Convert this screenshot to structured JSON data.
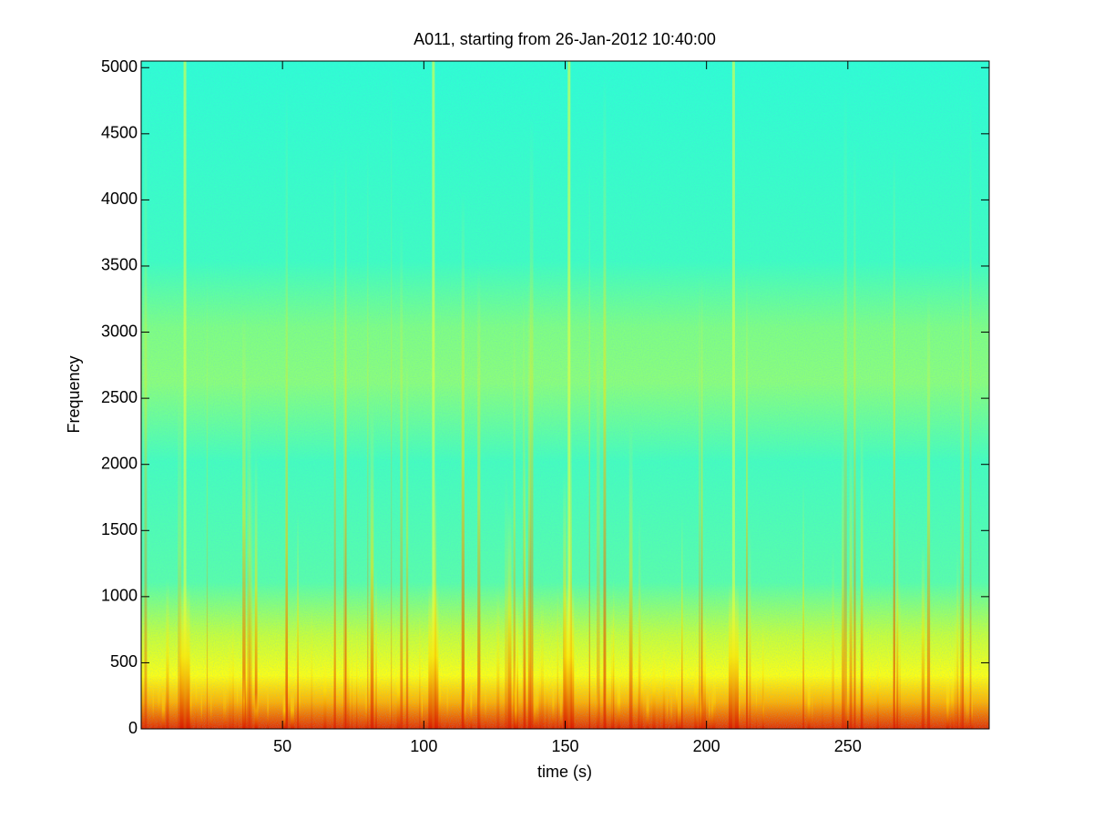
{
  "chart_data": {
    "type": "spectrogram",
    "title": "A011, starting from 26-Jan-2012 10:40:00",
    "x_label": "time (s)",
    "y_label": "Frequency",
    "xlim": [
      0,
      300
    ],
    "xticks": [
      50,
      100,
      150,
      200,
      250
    ],
    "ylim": [
      0,
      5050
    ],
    "yticks": [
      0,
      500,
      1000,
      1500,
      2000,
      2500,
      3000,
      3500,
      4000,
      4500,
      5000
    ],
    "colormap": "jet"
  }
}
